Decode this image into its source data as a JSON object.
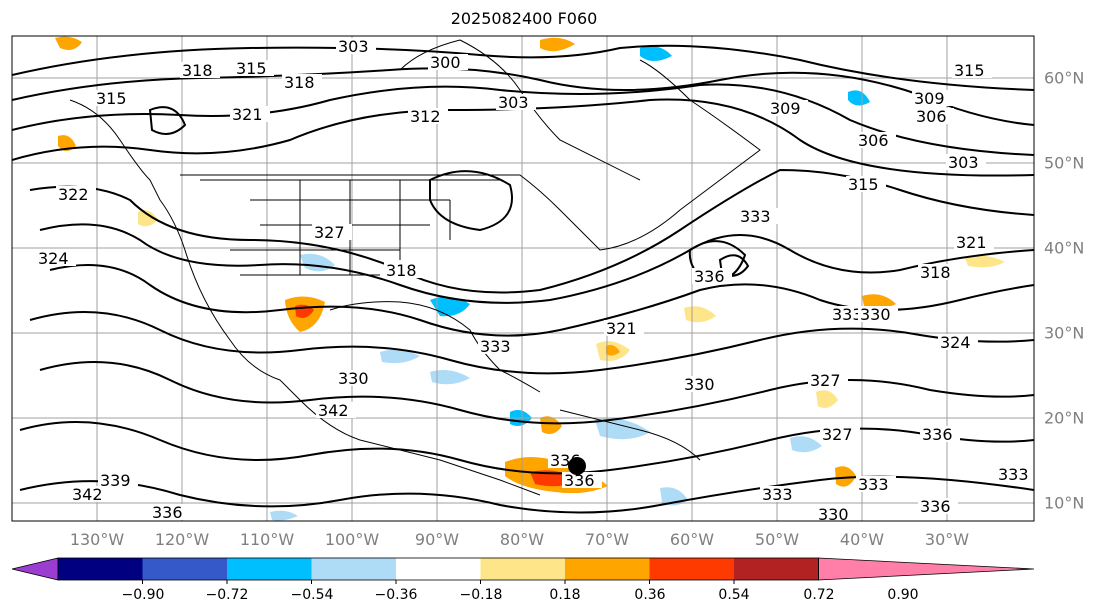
{
  "title": "2025082400 F060",
  "map": {
    "lon_labels": [
      "130°W",
      "120°W",
      "110°W",
      "100°W",
      "90°W",
      "80°W",
      "70°W",
      "60°W",
      "50°W",
      "40°W",
      "30°W"
    ],
    "lat_labels": [
      "60°N",
      "50°N",
      "40°N",
      "30°N",
      "20°N",
      "10°N"
    ],
    "contour_labels": [
      "303",
      "300",
      "318",
      "315",
      "318",
      "321",
      "315",
      "312",
      "303",
      "309",
      "306",
      "303",
      "315",
      "321",
      "318",
      "333",
      "336",
      "322",
      "324",
      "327",
      "318",
      "321",
      "333",
      "330",
      "333",
      "324",
      "330",
      "327",
      "327",
      "336",
      "342",
      "339",
      "342",
      "336",
      "330",
      "333",
      "333",
      "336",
      "333",
      "336",
      "330",
      "336",
      "309",
      "306",
      "315"
    ],
    "marker": "storm-center-dot"
  },
  "colorbar": {
    "tick_labels": [
      "−0.90",
      "−0.72",
      "−0.54",
      "−0.36",
      "−0.18",
      "0.18",
      "0.36",
      "0.54",
      "0.72",
      "0.90"
    ],
    "colors": [
      "#9a3dd0",
      "#000080",
      "#3559c8",
      "#00bfff",
      "#aedcf7",
      "#ffffff",
      "#ffe58a",
      "#ffa500",
      "#ff3a00",
      "#b22222",
      "#ff7fa8"
    ]
  }
}
